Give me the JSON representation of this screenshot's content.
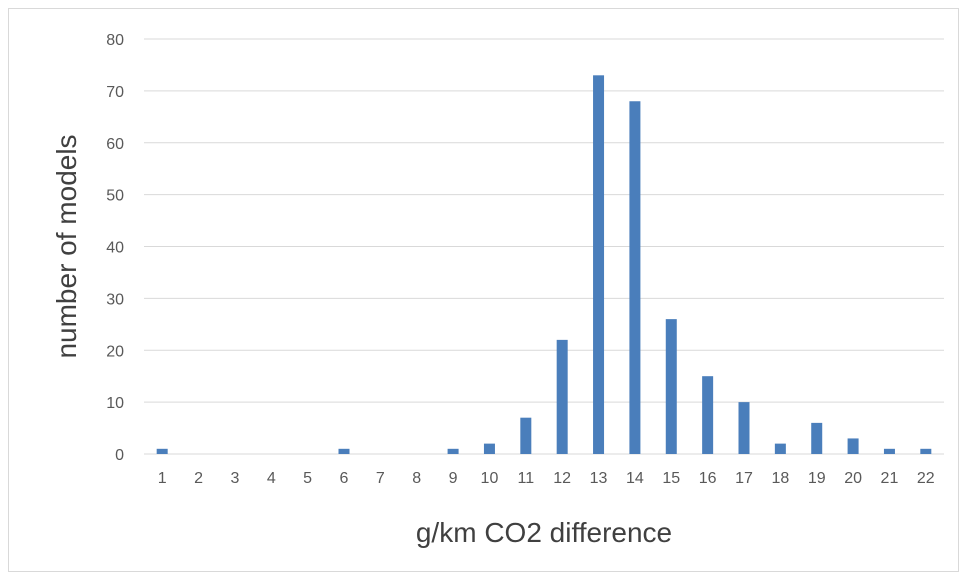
{
  "chart_data": {
    "type": "bar",
    "title": "",
    "xlabel": "g/km CO2 difference",
    "ylabel": "number of models",
    "categories": [
      "1",
      "2",
      "3",
      "4",
      "5",
      "6",
      "7",
      "8",
      "9",
      "10",
      "11",
      "12",
      "13",
      "14",
      "15",
      "16",
      "17",
      "18",
      "19",
      "20",
      "21",
      "22"
    ],
    "values": [
      1,
      0,
      0,
      0,
      0,
      1,
      0,
      0,
      1,
      2,
      7,
      22,
      73,
      68,
      26,
      15,
      10,
      2,
      6,
      3,
      1,
      1
    ],
    "ylim": [
      0,
      80
    ],
    "yticks": [
      0,
      10,
      20,
      30,
      40,
      50,
      60,
      70,
      80
    ],
    "grid": true,
    "legend": "none",
    "bar_color": "#4a7ebb",
    "grid_color": "#d9d9d9"
  }
}
